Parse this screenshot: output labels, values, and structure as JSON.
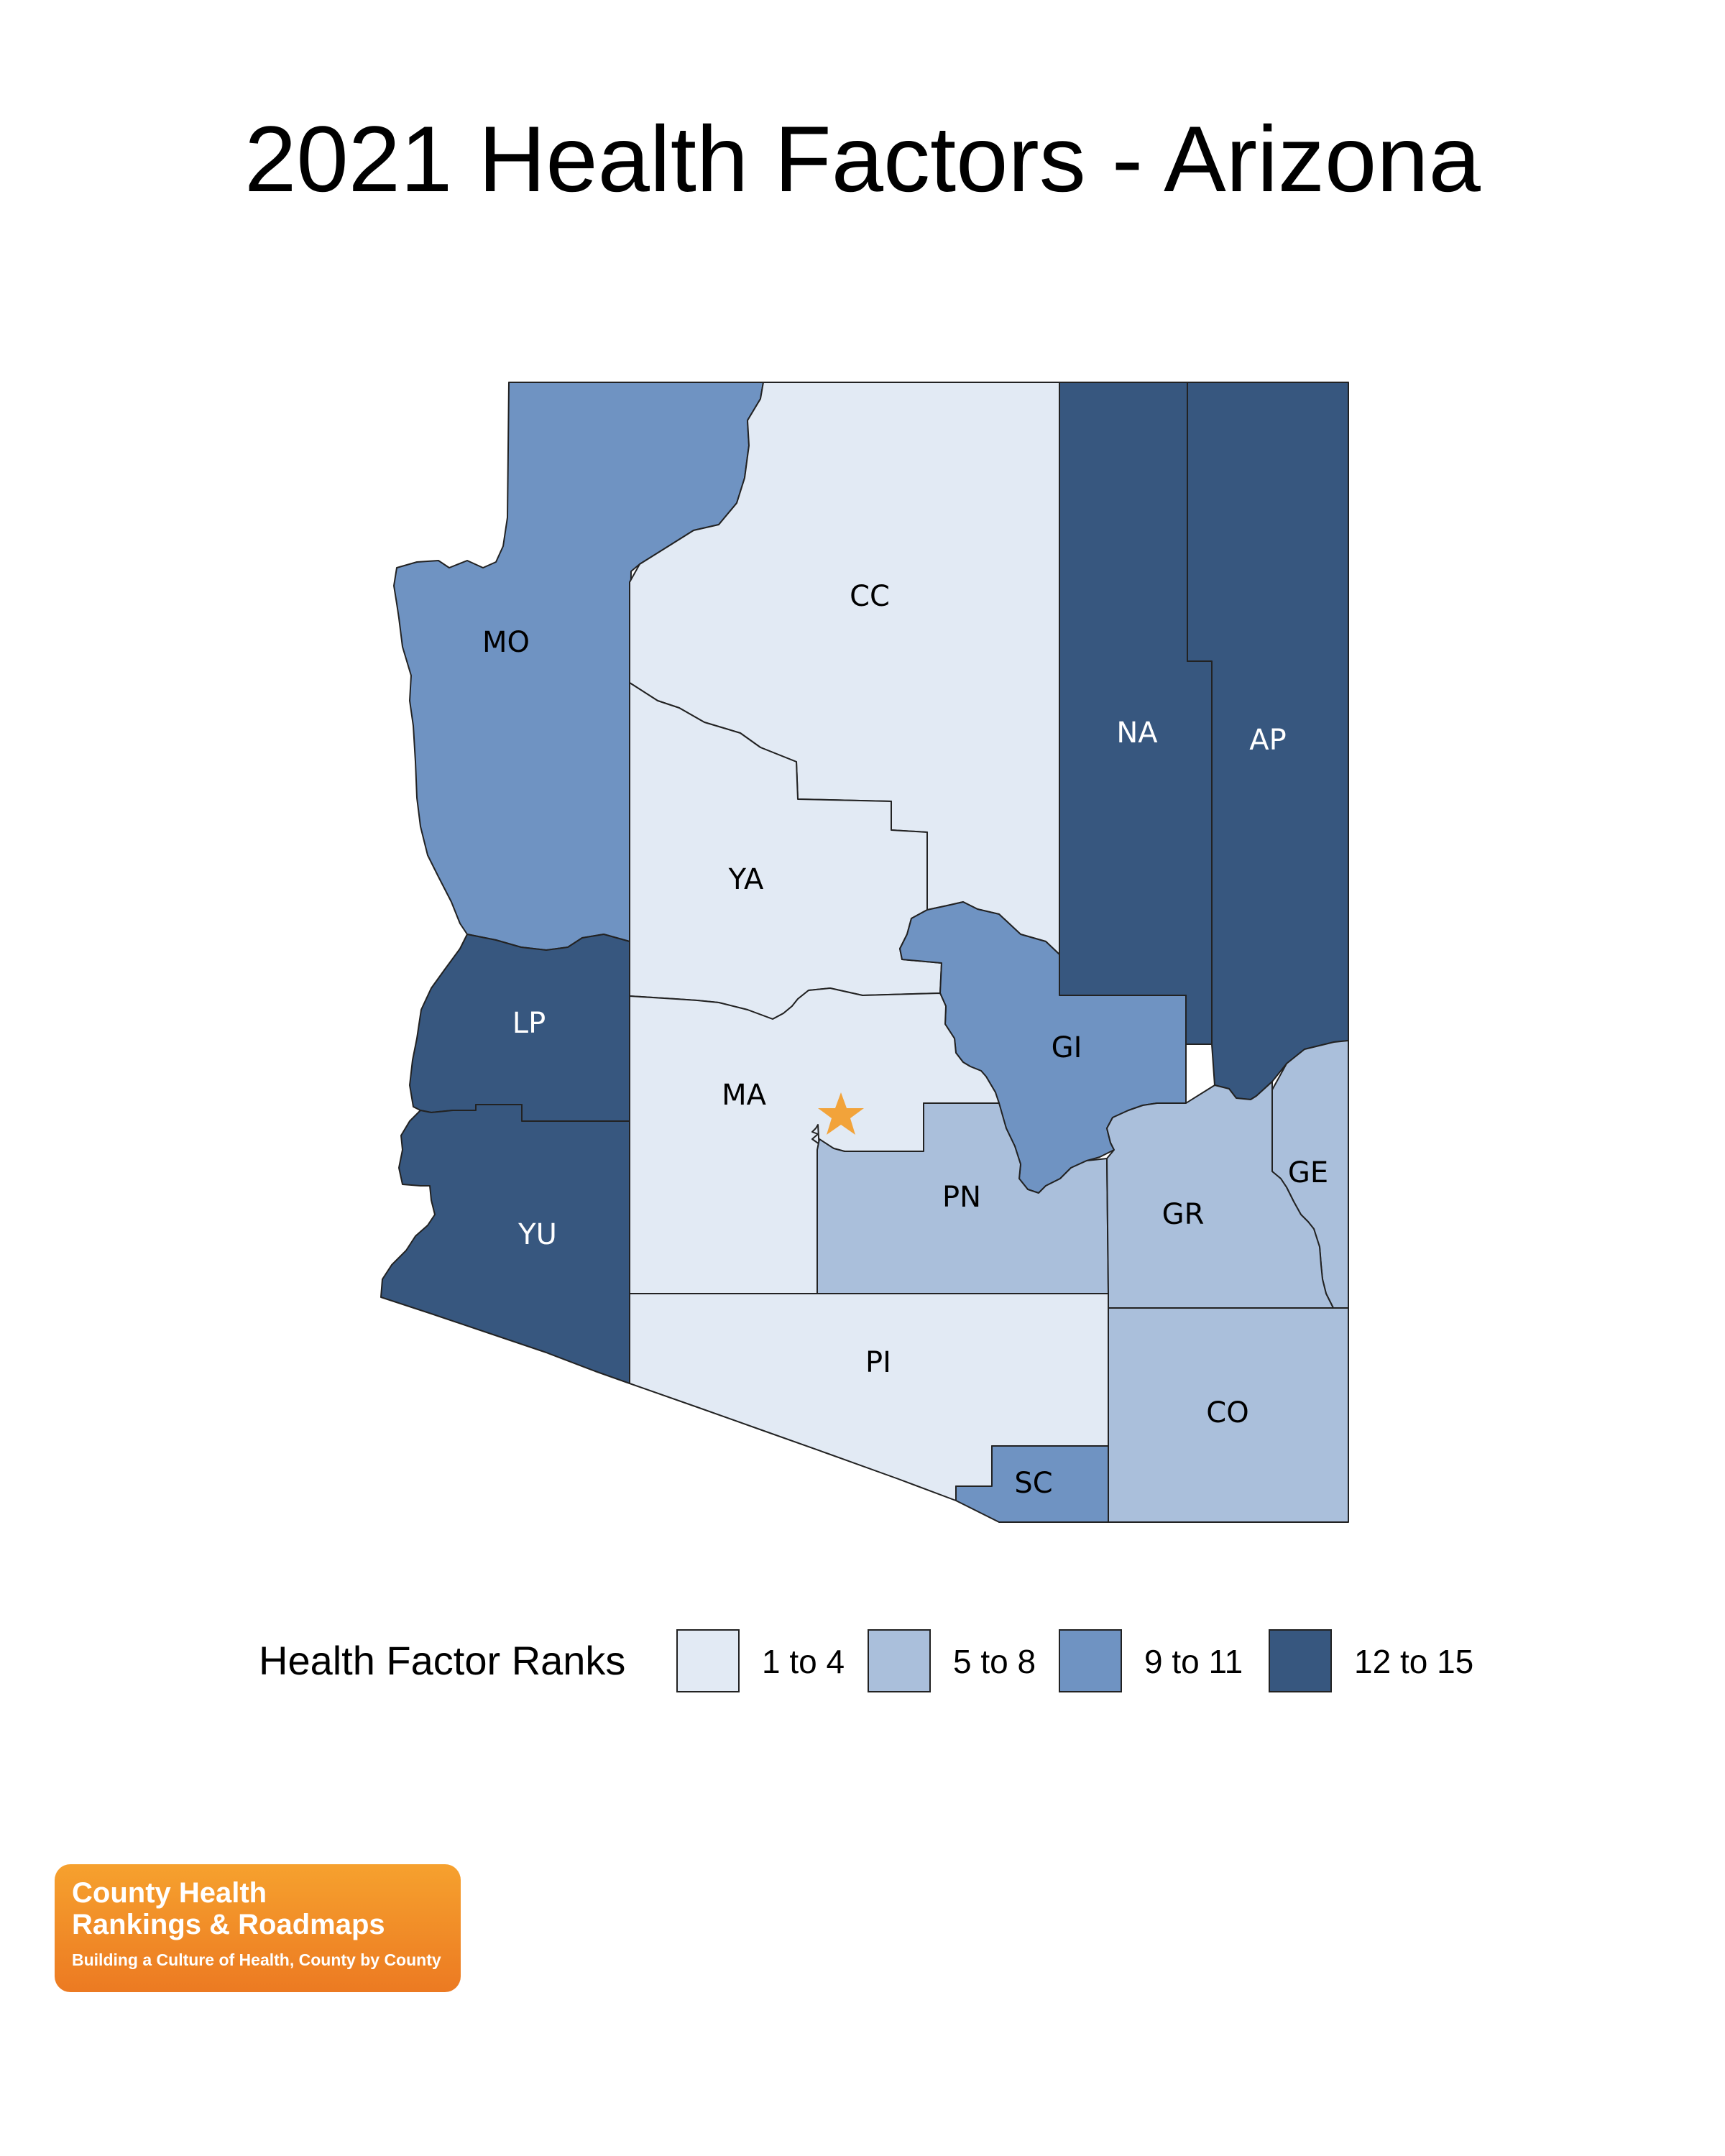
{
  "title": "2021 Health Factors - Arizona",
  "legend": {
    "title": "Health Factor Ranks",
    "items": [
      {
        "label": "1 to 4",
        "color": "#e2eaf4"
      },
      {
        "label": "5 to 8",
        "color": "#aabfdb"
      },
      {
        "label": "9 to 11",
        "color": "#6f93c2"
      },
      {
        "label": "12 to 15",
        "color": "#37577f"
      }
    ]
  },
  "counties": [
    {
      "code": "MO",
      "rank_group": "9 to 11",
      "color": "#6f93c2"
    },
    {
      "code": "CC",
      "rank_group": "1 to 4",
      "color": "#e2eaf4"
    },
    {
      "code": "NA",
      "rank_group": "12 to 15",
      "color": "#37577f"
    },
    {
      "code": "AP",
      "rank_group": "12 to 15",
      "color": "#37577f"
    },
    {
      "code": "YA",
      "rank_group": "1 to 4",
      "color": "#e2eaf4"
    },
    {
      "code": "LP",
      "rank_group": "12 to 15",
      "color": "#37577f"
    },
    {
      "code": "GI",
      "rank_group": "9 to 11",
      "color": "#6f93c2"
    },
    {
      "code": "MA",
      "rank_group": "1 to 4",
      "color": "#e2eaf4"
    },
    {
      "code": "GE",
      "rank_group": "5 to 8",
      "color": "#aabfdb"
    },
    {
      "code": "PN",
      "rank_group": "5 to 8",
      "color": "#aabfdb"
    },
    {
      "code": "GR",
      "rank_group": "5 to 8",
      "color": "#aabfdb"
    },
    {
      "code": "YU",
      "rank_group": "12 to 15",
      "color": "#37577f"
    },
    {
      "code": "PI",
      "rank_group": "1 to 4",
      "color": "#e2eaf4"
    },
    {
      "code": "CO",
      "rank_group": "5 to 8",
      "color": "#aabfdb"
    },
    {
      "code": "SC",
      "rank_group": "9 to 11",
      "color": "#6f93c2"
    }
  ],
  "capital_marker": {
    "icon": "star-icon",
    "color": "#f2a33a"
  },
  "logo": {
    "line1": "County Health",
    "line2": "Rankings & Roadmaps",
    "tagline": "Building a Culture of Health, County by County"
  }
}
